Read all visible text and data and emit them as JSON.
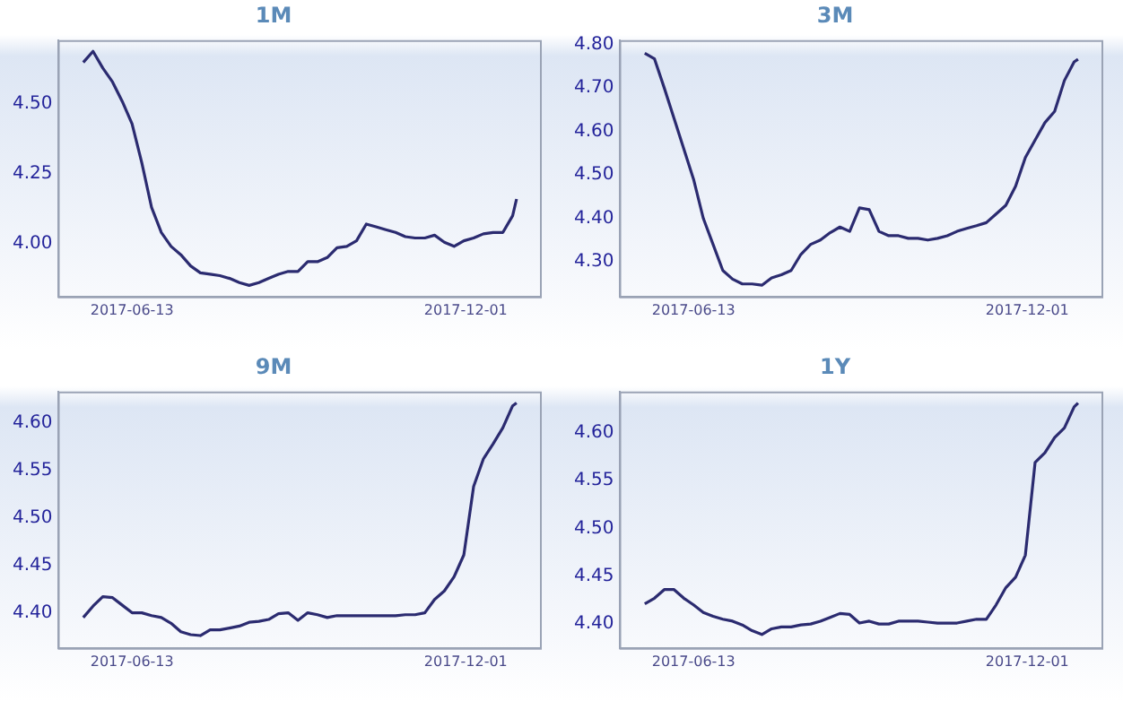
{
  "chart_data": [
    {
      "type": "line",
      "title": "1M",
      "x": [
        "2017-05-19",
        "2017-05-24",
        "2017-05-29",
        "2017-06-03",
        "2017-06-08",
        "2017-06-13",
        "2017-06-18",
        "2017-06-23",
        "2017-06-28",
        "2017-07-03",
        "2017-07-08",
        "2017-07-13",
        "2017-07-18",
        "2017-07-23",
        "2017-07-28",
        "2017-08-02",
        "2017-08-07",
        "2017-08-12",
        "2017-08-17",
        "2017-08-22",
        "2017-08-27",
        "2017-09-01",
        "2017-09-06",
        "2017-09-11",
        "2017-09-16",
        "2017-09-21",
        "2017-09-26",
        "2017-10-01",
        "2017-10-06",
        "2017-10-11",
        "2017-10-16",
        "2017-10-21",
        "2017-10-26",
        "2017-10-31",
        "2017-11-05",
        "2017-11-10",
        "2017-11-15",
        "2017-11-20",
        "2017-11-25",
        "2017-11-30",
        "2017-12-05",
        "2017-12-10",
        "2017-12-15",
        "2017-12-20",
        "2017-12-25",
        "2017-12-27"
      ],
      "series": [
        {
          "color": "#2b2b70",
          "values": [
            4.65,
            4.69,
            4.63,
            4.58,
            4.51,
            4.43,
            4.29,
            4.13,
            4.04,
            3.99,
            3.96,
            3.92,
            3.895,
            3.89,
            3.885,
            3.875,
            3.86,
            3.85,
            3.86,
            3.875,
            3.89,
            3.9,
            3.9,
            3.935,
            3.935,
            3.95,
            3.985,
            3.99,
            4.01,
            4.07,
            4.06,
            4.05,
            4.04,
            4.025,
            4.02,
            4.02,
            4.03,
            4.005,
            3.99,
            4.01,
            4.02,
            4.035,
            4.04,
            4.04,
            4.1,
            4.16
          ]
        }
      ],
      "xlim": [
        "2017-05-06",
        "2018-01-08"
      ],
      "xticks": [
        "2017-06-13",
        "2017-12-01"
      ],
      "ylim": [
        3.81,
        4.73
      ],
      "yticks": [
        {
          "value": 4,
          "label": "4.00"
        },
        4.25,
        {
          "value": 4.5,
          "label": "4.50"
        }
      ],
      "grid": false,
      "legend": false,
      "marker": "none",
      "line_style": "solid"
    },
    {
      "type": "line",
      "title": "3M",
      "x": [
        "2017-05-19",
        "2017-05-24",
        "2017-05-29",
        "2017-06-03",
        "2017-06-08",
        "2017-06-13",
        "2017-06-18",
        "2017-06-23",
        "2017-06-28",
        "2017-07-03",
        "2017-07-08",
        "2017-07-13",
        "2017-07-18",
        "2017-07-23",
        "2017-07-28",
        "2017-08-02",
        "2017-08-07",
        "2017-08-12",
        "2017-08-17",
        "2017-08-22",
        "2017-08-27",
        "2017-09-01",
        "2017-09-06",
        "2017-09-11",
        "2017-09-16",
        "2017-09-21",
        "2017-09-26",
        "2017-10-01",
        "2017-10-06",
        "2017-10-11",
        "2017-10-16",
        "2017-10-21",
        "2017-10-26",
        "2017-10-31",
        "2017-11-05",
        "2017-11-10",
        "2017-11-15",
        "2017-11-20",
        "2017-11-25",
        "2017-11-30",
        "2017-12-05",
        "2017-12-10",
        "2017-12-15",
        "2017-12-20",
        "2017-12-25",
        "2017-12-27"
      ],
      "series": [
        {
          "color": "#2b2b70",
          "values": [
            4.78,
            4.767,
            4.7,
            4.63,
            4.56,
            4.49,
            4.4,
            4.34,
            4.28,
            4.26,
            4.249,
            4.249,
            4.246,
            4.263,
            4.27,
            4.28,
            4.317,
            4.34,
            4.35,
            4.367,
            4.38,
            4.37,
            4.424,
            4.42,
            4.37,
            4.36,
            4.36,
            4.354,
            4.354,
            4.35,
            4.354,
            4.36,
            4.37,
            4.377,
            4.383,
            4.39,
            4.41,
            4.43,
            4.474,
            4.54,
            4.58,
            4.62,
            4.646,
            4.717,
            4.76,
            4.766
          ]
        }
      ],
      "xlim": [
        "2017-05-06",
        "2018-01-08"
      ],
      "xticks": [
        "2017-06-13",
        "2017-12-01"
      ],
      "ylim": [
        4.22,
        4.81
      ],
      "yticks": [
        {
          "value": 4.3,
          "label": "4.30"
        },
        {
          "value": 4.4,
          "label": "4.40"
        },
        {
          "value": 4.5,
          "label": "4.50"
        },
        {
          "value": 4.6,
          "label": "4.60"
        },
        {
          "value": 4.7,
          "label": "4.70"
        },
        {
          "value": 4.8,
          "label": "4.80"
        }
      ],
      "grid": false,
      "legend": false,
      "marker": "none",
      "line_style": "solid"
    },
    {
      "type": "line",
      "title": "9M",
      "x": [
        "2017-05-19",
        "2017-05-24",
        "2017-05-29",
        "2017-06-03",
        "2017-06-08",
        "2017-06-13",
        "2017-06-18",
        "2017-06-23",
        "2017-06-28",
        "2017-07-03",
        "2017-07-08",
        "2017-07-13",
        "2017-07-18",
        "2017-07-23",
        "2017-07-28",
        "2017-08-02",
        "2017-08-07",
        "2017-08-12",
        "2017-08-17",
        "2017-08-22",
        "2017-08-27",
        "2017-09-01",
        "2017-09-06",
        "2017-09-11",
        "2017-09-16",
        "2017-09-21",
        "2017-09-26",
        "2017-10-01",
        "2017-10-06",
        "2017-10-11",
        "2017-10-16",
        "2017-10-21",
        "2017-10-26",
        "2017-10-31",
        "2017-11-05",
        "2017-11-10",
        "2017-11-15",
        "2017-11-20",
        "2017-11-25",
        "2017-11-30",
        "2017-12-05",
        "2017-12-10",
        "2017-12-15",
        "2017-12-20",
        "2017-12-25",
        "2017-12-27"
      ],
      "series": [
        {
          "color": "#2b2b70",
          "values": [
            4.395,
            4.407,
            4.417,
            4.416,
            4.408,
            4.4,
            4.4,
            4.397,
            4.395,
            4.389,
            4.38,
            4.377,
            4.376,
            4.382,
            4.382,
            4.384,
            4.386,
            4.39,
            4.391,
            4.393,
            4.399,
            4.4,
            4.392,
            4.4,
            4.398,
            4.395,
            4.397,
            4.397,
            4.397,
            4.397,
            4.397,
            4.397,
            4.397,
            4.398,
            4.398,
            4.4,
            4.414,
            4.423,
            4.438,
            4.461,
            4.533,
            4.562,
            4.578,
            4.595,
            4.618,
            4.621
          ]
        }
      ],
      "xlim": [
        "2017-05-06",
        "2018-01-08"
      ],
      "xticks": [
        "2017-06-13",
        "2017-12-01"
      ],
      "ylim": [
        4.363,
        4.633
      ],
      "yticks": [
        {
          "value": 4.4,
          "label": "4.40"
        },
        4.45,
        {
          "value": 4.5,
          "label": "4.50"
        },
        4.55,
        {
          "value": 4.6,
          "label": "4.60"
        }
      ],
      "grid": false,
      "legend": false,
      "marker": "none",
      "line_style": "solid"
    },
    {
      "type": "line",
      "title": "1Y",
      "x": [
        "2017-05-19",
        "2017-05-24",
        "2017-05-29",
        "2017-06-03",
        "2017-06-08",
        "2017-06-13",
        "2017-06-18",
        "2017-06-23",
        "2017-06-28",
        "2017-07-03",
        "2017-07-08",
        "2017-07-13",
        "2017-07-18",
        "2017-07-23",
        "2017-07-28",
        "2017-08-02",
        "2017-08-07",
        "2017-08-12",
        "2017-08-17",
        "2017-08-22",
        "2017-08-27",
        "2017-09-01",
        "2017-09-06",
        "2017-09-11",
        "2017-09-16",
        "2017-09-21",
        "2017-09-26",
        "2017-10-01",
        "2017-10-06",
        "2017-10-11",
        "2017-10-16",
        "2017-10-21",
        "2017-10-26",
        "2017-10-31",
        "2017-11-05",
        "2017-11-10",
        "2017-11-15",
        "2017-11-20",
        "2017-11-25",
        "2017-11-30",
        "2017-12-05",
        "2017-12-10",
        "2017-12-15",
        "2017-12-20",
        "2017-12-25",
        "2017-12-27"
      ],
      "series": [
        {
          "color": "#2b2b70",
          "values": [
            4.421,
            4.427,
            4.436,
            4.436,
            4.427,
            4.42,
            4.412,
            4.408,
            4.405,
            4.403,
            4.399,
            4.393,
            4.389,
            4.395,
            4.397,
            4.397,
            4.399,
            4.4,
            4.403,
            4.407,
            4.411,
            4.41,
            4.401,
            4.403,
            4.4,
            4.4,
            4.403,
            4.403,
            4.403,
            4.402,
            4.401,
            4.401,
            4.401,
            4.403,
            4.405,
            4.405,
            4.42,
            4.438,
            4.449,
            4.472,
            4.569,
            4.579,
            4.595,
            4.605,
            4.627,
            4.631
          ]
        }
      ],
      "xlim": [
        "2017-05-06",
        "2018-01-08"
      ],
      "xticks": [
        "2017-06-13",
        "2017-12-01"
      ],
      "ylim": [
        4.375,
        4.643
      ],
      "yticks": [
        {
          "value": 4.4,
          "label": "4.40"
        },
        4.45,
        {
          "value": 4.5,
          "label": "4.50"
        },
        4.55,
        {
          "value": 4.6,
          "label": "4.60"
        }
      ],
      "grid": false,
      "legend": false,
      "marker": "none",
      "line_style": "solid"
    }
  ]
}
